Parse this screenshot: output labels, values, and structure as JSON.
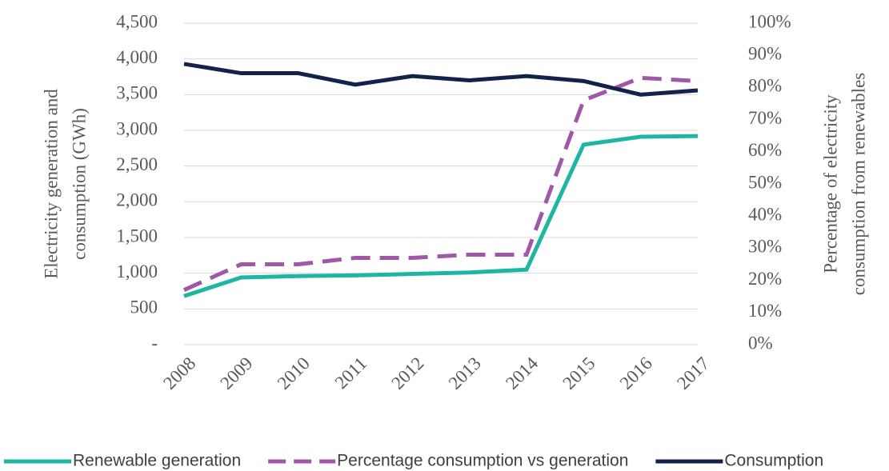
{
  "chart_data": {
    "type": "line",
    "categories": [
      "2008",
      "2009",
      "2010",
      "2011",
      "2012",
      "2013",
      "2014",
      "2015",
      "2016",
      "2017"
    ],
    "ylabel": [
      "Electricity generation and",
      "consumption (GWh)"
    ],
    "y2label": [
      "Percentage of electricity",
      "consumption from renewables"
    ],
    "ylim": [
      0,
      4500
    ],
    "yticks": [
      {
        "value": 0,
        "label": "-"
      },
      500,
      {
        "value": 1000,
        "label": "1,000"
      },
      {
        "value": 1500,
        "label": "1,500"
      },
      {
        "value": 2000,
        "label": "2,000"
      },
      {
        "value": 2500,
        "label": "2,500"
      },
      {
        "value": 3000,
        "label": "3,000"
      },
      {
        "value": 3500,
        "label": "3,500"
      },
      {
        "value": 4000,
        "label": "4,000"
      },
      {
        "value": 4500,
        "label": "4,500"
      }
    ],
    "y2lim": [
      0,
      100
    ],
    "y2ticks": [
      {
        "value": 0,
        "label": "0%"
      },
      {
        "value": 10,
        "label": "10%"
      },
      {
        "value": 20,
        "label": "20%"
      },
      {
        "value": 30,
        "label": "30%"
      },
      {
        "value": 40,
        "label": "40%"
      },
      {
        "value": 50,
        "label": "50%"
      },
      {
        "value": 60,
        "label": "60%"
      },
      {
        "value": 70,
        "label": "70%"
      },
      {
        "value": 80,
        "label": "80%"
      },
      {
        "value": 90,
        "label": "90%"
      },
      {
        "value": 100,
        "label": "100%"
      }
    ],
    "grid": true,
    "legend": "bottom",
    "series": [
      {
        "name": "Renewable generation",
        "color": "#1fb5a3",
        "dashed": false,
        "values": [
          680,
          940,
          960,
          970,
          990,
          1010,
          1050,
          2800,
          2910,
          2920
        ]
      },
      {
        "name": "Percentage consumption vs generation",
        "color": "#a057a8",
        "dashed": true,
        "axis": "y2",
        "values": [
          17,
          25,
          25,
          27,
          27,
          28,
          28,
          76,
          83,
          82
        ]
      },
      {
        "name": "Consumption",
        "color": "#13224a",
        "dashed": false,
        "values": [
          3930,
          3800,
          3800,
          3640,
          3760,
          3700,
          3760,
          3690,
          3500,
          3560
        ]
      }
    ]
  }
}
